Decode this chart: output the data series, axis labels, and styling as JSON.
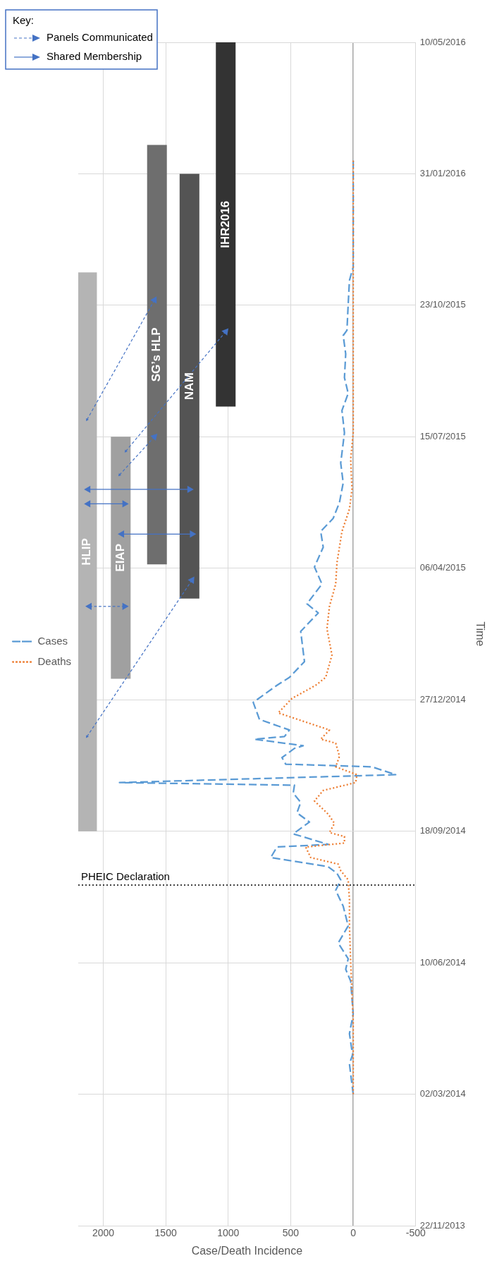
{
  "chart_data": {
    "type": "line",
    "orientation": "horizontal",
    "xlabel": "Case/Death Incidence",
    "ylabel": "Time",
    "legend": "left",
    "legend_title": "Key:",
    "grid": true,
    "xlim": [
      2200,
      -500
    ],
    "xticks": [
      -500,
      0,
      500,
      1000,
      1500,
      2000
    ],
    "ylim": [
      "2013-11-22",
      "2016-05-10"
    ],
    "yticks": [
      {
        "value": "2013-11-22",
        "label": "22/11/2013"
      },
      {
        "value": "2014-03-02",
        "label": "02/03/2014"
      },
      {
        "value": "2014-06-10",
        "label": "10/06/2014"
      },
      {
        "value": "2014-09-18",
        "label": "18/09/2014"
      },
      {
        "value": "2014-12-27",
        "label": "27/12/2014"
      },
      {
        "value": "2015-04-06",
        "label": "06/04/2015"
      },
      {
        "value": "2015-07-15",
        "label": "15/07/2015"
      },
      {
        "value": "2015-10-23",
        "label": "23/10/2015"
      },
      {
        "value": "2016-01-31",
        "label": "31/01/2016"
      },
      {
        "value": "2016-05-10",
        "label": "10/05/2016"
      }
    ],
    "ref_lines": [
      {
        "axis": "y",
        "value": "2014-08-08",
        "label": "PHEIC Declaration",
        "color": "#000000",
        "line_style": "dotted"
      }
    ],
    "series": [
      {
        "name": "Cases",
        "color": "#5b9bd5",
        "line_style": "dashed",
        "x": [
          "2014-03-02",
          "2014-03-25",
          "2014-04-01",
          "2014-04-17",
          "2014-05-02",
          "2014-05-27",
          "2014-06-05",
          "2014-06-13",
          "2014-06-25",
          "2014-07-08",
          "2014-07-23",
          "2014-08-04",
          "2014-08-12",
          "2014-08-17",
          "2014-08-22",
          "2014-08-29",
          "2014-09-06",
          "2014-09-08",
          "2014-09-16",
          "2014-09-25",
          "2014-10-02",
          "2014-10-10",
          "2014-10-17",
          "2014-10-23",
          "2014-10-25",
          "2014-10-31",
          "2014-11-06",
          "2014-11-08",
          "2014-11-13",
          "2014-11-20",
          "2014-11-22",
          "2014-11-27",
          "2014-11-29",
          "2014-12-04",
          "2014-12-12",
          "2014-12-25",
          "2015-01-07",
          "2015-01-13",
          "2015-01-25",
          "2015-02-17",
          "2015-03-03",
          "2015-03-10",
          "2015-03-25",
          "2015-04-07",
          "2015-04-22",
          "2015-05-04",
          "2015-05-14",
          "2015-05-26",
          "2015-06-10",
          "2015-06-25",
          "2015-07-18",
          "2015-08-04",
          "2015-08-17",
          "2015-08-29",
          "2015-09-16",
          "2015-09-30",
          "2015-10-04",
          "2015-10-24",
          "2015-11-11",
          "2015-11-21",
          "2015-12-28",
          "2016-02-10"
        ],
        "values": [
          0,
          30,
          5,
          30,
          0,
          20,
          60,
          40,
          120,
          40,
          80,
          140,
          100,
          130,
          200,
          660,
          610,
          200,
          480,
          350,
          450,
          420,
          480,
          470,
          1870,
          -340,
          -150,
          540,
          570,
          470,
          400,
          790,
          550,
          510,
          750,
          800,
          610,
          510,
          390,
          420,
          280,
          370,
          250,
          310,
          240,
          260,
          160,
          110,
          80,
          100,
          70,
          90,
          40,
          70,
          60,
          80,
          50,
          40,
          30,
          0,
          0,
          0
        ]
      },
      {
        "name": "Deaths",
        "color": "#ed7d31",
        "line_style": "dotted",
        "x": [
          "2014-03-02",
          "2014-04-27",
          "2014-06-10",
          "2014-07-08",
          "2014-07-28",
          "2014-08-12",
          "2014-08-19",
          "2014-08-24",
          "2014-08-29",
          "2014-09-06",
          "2014-09-09",
          "2014-09-14",
          "2014-09-17",
          "2014-09-24",
          "2014-10-01",
          "2014-10-11",
          "2014-10-19",
          "2014-10-25",
          "2014-10-31",
          "2014-11-06",
          "2014-11-14",
          "2014-11-24",
          "2014-11-27",
          "2014-12-04",
          "2014-12-17",
          "2014-12-28",
          "2015-01-07",
          "2015-01-13",
          "2015-01-30",
          "2015-02-19",
          "2015-03-08",
          "2015-03-25",
          "2015-04-10",
          "2015-05-04",
          "2015-05-21",
          "2015-06-05",
          "2015-06-28",
          "2015-07-18",
          "2015-10-24",
          "2016-02-10"
        ],
        "values": [
          0,
          0,
          20,
          30,
          30,
          40,
          100,
          120,
          340,
          380,
          70,
          70,
          190,
          150,
          200,
          310,
          240,
          -20,
          -30,
          140,
          110,
          140,
          260,
          190,
          600,
          490,
          300,
          220,
          170,
          210,
          190,
          140,
          130,
          90,
          30,
          10,
          20,
          0,
          0,
          0
        ]
      },
      {
        "name": "HLIP",
        "color": "#b4b4b4",
        "x": [
          "2014-09-18",
          "2015-11-17"
        ],
        "values": [
          2130,
          2130
        ]
      },
      {
        "name": "EIAP",
        "color": "#a0a0a0",
        "x": [
          "2015-01-12",
          "2015-07-15"
        ],
        "values": [
          1860,
          1860
        ]
      },
      {
        "name": "SG’s HLP",
        "color": "#6e6e6e",
        "x": [
          "2015-04-09",
          "2016-02-22"
        ],
        "values": [
          1570,
          1570
        ]
      },
      {
        "name": "NAM",
        "color": "#545454",
        "x": [
          "2015-03-14",
          "2016-01-31"
        ],
        "values": [
          1310,
          1310
        ]
      },
      {
        "name": "IHR2016",
        "color": "#333333",
        "x": [
          "2015-08-07",
          "2016-05-10"
        ],
        "values": [
          1020,
          1020
        ]
      },
      {
        "name": "Panels Communicated",
        "color": "#4472c4",
        "line_style": "dashed",
        "marker": "triangle",
        "x": [
          "2015-07-28",
          "2015-10-27"
        ],
        "values": [
          2130,
          1590
        ]
      },
      {
        "color": "#4472c4",
        "line_style": "dashed",
        "marker": "triangle",
        "x": [
          "2015-07-04",
          "2015-10-03"
        ],
        "values": [
          1820,
          1020
        ]
      },
      {
        "color": "#4472c4",
        "line_style": "dashed",
        "marker": "triangle",
        "x": [
          "2015-06-16",
          "2015-07-15"
        ],
        "values": [
          1870,
          1590
        ]
      },
      {
        "color": "#4472c4",
        "line_style": "dashed",
        "marker": "triangle",
        "x": [
          "2014-11-29",
          "2015-03-28"
        ],
        "values": [
          2130,
          1290
        ]
      },
      {
        "color": "#4472c4",
        "line_style": "dashed",
        "marker": "triangle",
        "x": [
          "2015-03-08",
          "2015-03-08"
        ],
        "values": [
          2110,
          1830
        ]
      },
      {
        "name": "Shared Membership",
        "color": "#4472c4",
        "line_style": "solid",
        "marker": "triangle",
        "x": [
          "2015-06-05",
          "2015-06-05"
        ],
        "values": [
          2120,
          1310
        ]
      },
      {
        "color": "#4472c4",
        "line_style": "solid",
        "marker": "triangle",
        "x": [
          "2015-05-25",
          "2015-05-25"
        ],
        "values": [
          2120,
          1830
        ]
      },
      {
        "color": "#4472c4",
        "line_style": "solid",
        "marker": "triangle",
        "x": [
          "2015-05-02",
          "2015-05-02"
        ],
        "values": [
          1850,
          1290
        ]
      }
    ]
  }
}
